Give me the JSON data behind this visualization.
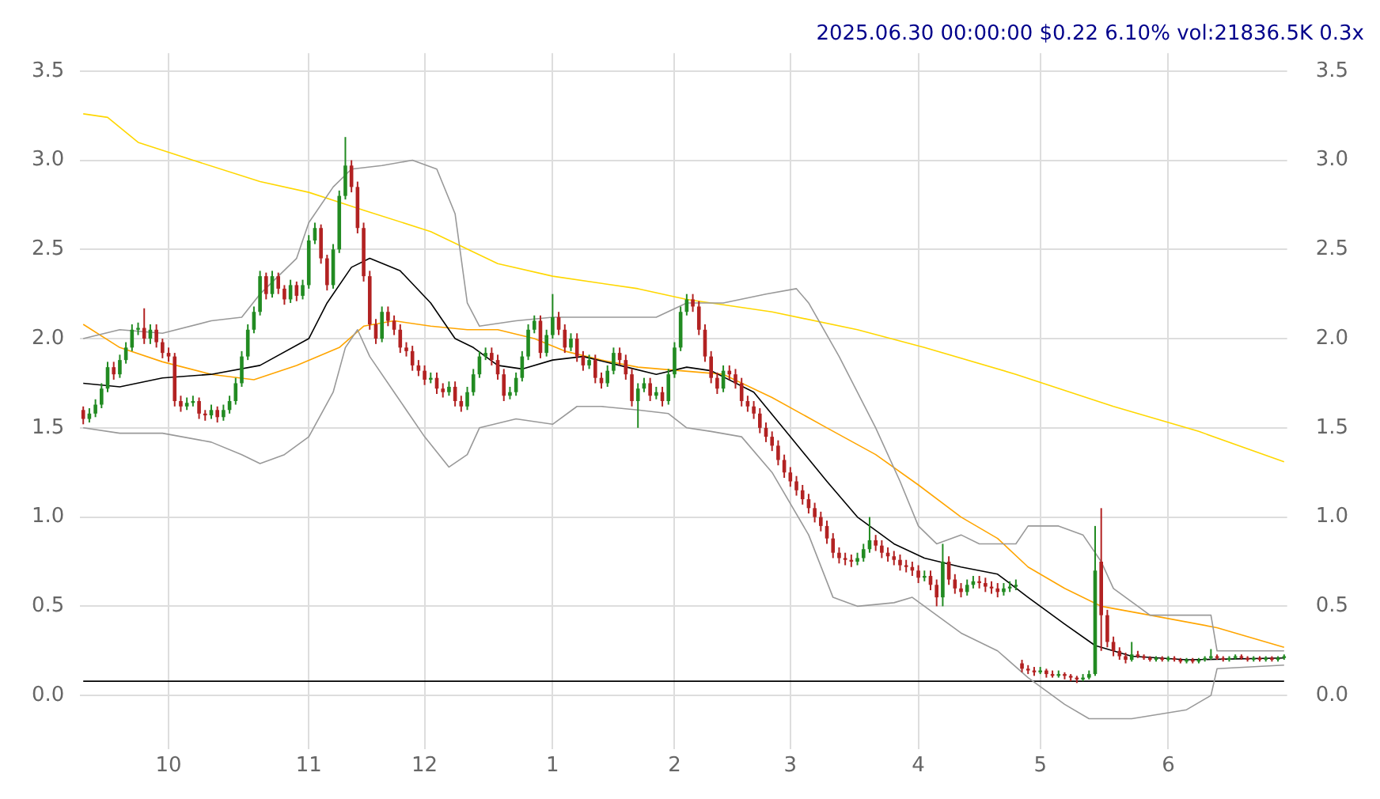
{
  "chart_data": {
    "type": "candlestick",
    "title": "2025.06.30 00:00:00 $0.22 6.10% vol:21836.5K 0.3x",
    "categories": [
      null,
      null,
      null,
      null,
      null,
      null,
      null,
      null,
      null,
      null,
      null,
      null,
      null,
      null,
      "10",
      null,
      null,
      null,
      null,
      null,
      null,
      null,
      null,
      null,
      null,
      null,
      null,
      null,
      null,
      null,
      null,
      null,
      null,
      null,
      null,
      null,
      null,
      "11",
      null,
      null,
      null,
      null,
      null,
      null,
      null,
      null,
      null,
      null,
      null,
      null,
      null,
      null,
      null,
      null,
      null,
      null,
      "12",
      null,
      null,
      null,
      null,
      null,
      null,
      null,
      null,
      null,
      null,
      null,
      null,
      null,
      null,
      null,
      null,
      null,
      null,
      null,
      null,
      "1",
      null,
      null,
      null,
      null,
      null,
      null,
      null,
      null,
      null,
      null,
      null,
      null,
      null,
      null,
      null,
      null,
      null,
      null,
      null,
      "2",
      null,
      null,
      null,
      null,
      null,
      null,
      null,
      null,
      null,
      null,
      null,
      null,
      null,
      null,
      null,
      null,
      null,
      null,
      "3",
      null,
      null,
      null,
      null,
      null,
      null,
      null,
      null,
      null,
      null,
      null,
      null,
      null,
      null,
      null,
      null,
      null,
      null,
      null,
      null,
      "4",
      null,
      null,
      null,
      null,
      null,
      null,
      null,
      null,
      null,
      null,
      null,
      null,
      null,
      null,
      null,
      null,
      null,
      null,
      null,
      "5",
      null,
      null,
      null,
      null,
      null,
      null,
      null,
      null,
      null,
      null,
      null,
      null,
      null,
      null,
      null,
      null,
      null,
      null,
      null,
      null,
      "6",
      null,
      null,
      null,
      null,
      null,
      null,
      null,
      null,
      null,
      null,
      null,
      null,
      null,
      null,
      null,
      null,
      null,
      null,
      null
    ],
    "ohlc": [
      [
        1.6,
        1.62,
        1.52,
        1.55
      ],
      [
        1.55,
        1.61,
        1.53,
        1.58
      ],
      [
        1.58,
        1.66,
        1.56,
        1.63
      ],
      [
        1.63,
        1.75,
        1.61,
        1.72
      ],
      [
        1.72,
        1.87,
        1.7,
        1.84
      ],
      [
        1.84,
        1.87,
        1.77,
        1.8
      ],
      [
        1.8,
        1.91,
        1.78,
        1.88
      ],
      [
        1.88,
        1.98,
        1.86,
        1.95
      ],
      [
        1.95,
        2.08,
        1.93,
        2.05
      ],
      [
        2.05,
        2.09,
        2.02,
        2.06
      ],
      [
        2.06,
        2.17,
        1.97,
        2.0
      ],
      [
        2.0,
        2.08,
        1.97,
        2.05
      ],
      [
        2.05,
        2.08,
        1.95,
        1.98
      ],
      [
        1.98,
        2.0,
        1.89,
        1.92
      ],
      [
        1.92,
        1.95,
        1.87,
        1.9
      ],
      [
        1.9,
        1.92,
        1.62,
        1.65
      ],
      [
        1.65,
        1.68,
        1.59,
        1.62
      ],
      [
        1.62,
        1.67,
        1.6,
        1.64
      ],
      [
        1.64,
        1.68,
        1.62,
        1.65
      ],
      [
        1.65,
        1.67,
        1.55,
        1.58
      ],
      [
        1.58,
        1.6,
        1.54,
        1.57
      ],
      [
        1.57,
        1.63,
        1.55,
        1.6
      ],
      [
        1.6,
        1.62,
        1.53,
        1.56
      ],
      [
        1.56,
        1.63,
        1.54,
        1.6
      ],
      [
        1.6,
        1.68,
        1.58,
        1.65
      ],
      [
        1.65,
        1.78,
        1.63,
        1.75
      ],
      [
        1.75,
        1.93,
        1.73,
        1.9
      ],
      [
        1.9,
        2.08,
        1.88,
        2.05
      ],
      [
        2.05,
        2.18,
        2.03,
        2.15
      ],
      [
        2.15,
        2.38,
        2.13,
        2.35
      ],
      [
        2.35,
        2.37,
        2.22,
        2.25
      ],
      [
        2.25,
        2.38,
        2.23,
        2.35
      ],
      [
        2.35,
        2.37,
        2.25,
        2.28
      ],
      [
        2.28,
        2.3,
        2.19,
        2.22
      ],
      [
        2.22,
        2.33,
        2.2,
        2.3
      ],
      [
        2.3,
        2.32,
        2.21,
        2.24
      ],
      [
        2.24,
        2.33,
        2.22,
        2.3
      ],
      [
        2.3,
        2.58,
        2.28,
        2.55
      ],
      [
        2.55,
        2.65,
        2.53,
        2.62
      ],
      [
        2.62,
        2.64,
        2.42,
        2.45
      ],
      [
        2.45,
        2.47,
        2.27,
        2.3
      ],
      [
        2.3,
        2.53,
        2.28,
        2.5
      ],
      [
        2.5,
        2.83,
        2.48,
        2.8
      ],
      [
        2.8,
        3.13,
        2.78,
        2.97
      ],
      [
        2.97,
        3.0,
        2.82,
        2.85
      ],
      [
        2.85,
        2.88,
        2.59,
        2.62
      ],
      [
        2.62,
        2.65,
        2.32,
        2.35
      ],
      [
        2.35,
        2.38,
        2.05,
        2.08
      ],
      [
        2.08,
        2.11,
        1.97,
        2.0
      ],
      [
        2.0,
        2.18,
        1.98,
        2.15
      ],
      [
        2.15,
        2.18,
        2.07,
        2.1
      ],
      [
        2.1,
        2.13,
        2.02,
        2.05
      ],
      [
        2.05,
        2.08,
        1.92,
        1.95
      ],
      [
        1.95,
        1.98,
        1.9,
        1.93
      ],
      [
        1.93,
        1.96,
        1.82,
        1.85
      ],
      [
        1.85,
        1.88,
        1.79,
        1.82
      ],
      [
        1.82,
        1.85,
        1.74,
        1.77
      ],
      [
        1.77,
        1.81,
        1.75,
        1.78
      ],
      [
        1.78,
        1.81,
        1.69,
        1.72
      ],
      [
        1.72,
        1.75,
        1.67,
        1.7
      ],
      [
        1.7,
        1.76,
        1.68,
        1.73
      ],
      [
        1.73,
        1.76,
        1.62,
        1.65
      ],
      [
        1.65,
        1.68,
        1.59,
        1.62
      ],
      [
        1.62,
        1.73,
        1.6,
        1.7
      ],
      [
        1.7,
        1.83,
        1.68,
        1.8
      ],
      [
        1.8,
        1.93,
        1.78,
        1.9
      ],
      [
        1.9,
        1.95,
        1.88,
        1.92
      ],
      [
        1.92,
        1.95,
        1.85,
        1.88
      ],
      [
        1.88,
        1.91,
        1.77,
        1.8
      ],
      [
        1.8,
        1.83,
        1.65,
        1.68
      ],
      [
        1.68,
        1.73,
        1.66,
        1.7
      ],
      [
        1.7,
        1.81,
        1.68,
        1.78
      ],
      [
        1.78,
        1.93,
        1.76,
        1.9
      ],
      [
        1.9,
        2.08,
        1.88,
        2.05
      ],
      [
        2.05,
        2.13,
        2.03,
        2.1
      ],
      [
        2.1,
        2.13,
        1.89,
        1.92
      ],
      [
        1.92,
        2.05,
        1.9,
        2.02
      ],
      [
        2.02,
        2.25,
        2.0,
        2.12
      ],
      [
        2.12,
        2.15,
        2.02,
        2.05
      ],
      [
        2.05,
        2.08,
        1.92,
        1.95
      ],
      [
        1.95,
        2.03,
        1.93,
        2.0
      ],
      [
        2.0,
        2.03,
        1.87,
        1.9
      ],
      [
        1.9,
        1.93,
        1.82,
        1.85
      ],
      [
        1.85,
        1.91,
        1.83,
        1.88
      ],
      [
        1.88,
        1.91,
        1.75,
        1.78
      ],
      [
        1.78,
        1.81,
        1.72,
        1.75
      ],
      [
        1.75,
        1.85,
        1.73,
        1.82
      ],
      [
        1.82,
        1.95,
        1.8,
        1.92
      ],
      [
        1.92,
        1.95,
        1.85,
        1.88
      ],
      [
        1.88,
        1.91,
        1.77,
        1.8
      ],
      [
        1.8,
        1.83,
        1.62,
        1.65
      ],
      [
        1.65,
        1.75,
        1.5,
        1.72
      ],
      [
        1.72,
        1.78,
        1.7,
        1.75
      ],
      [
        1.75,
        1.78,
        1.65,
        1.68
      ],
      [
        1.68,
        1.73,
        1.66,
        1.7
      ],
      [
        1.7,
        1.73,
        1.62,
        1.65
      ],
      [
        1.65,
        1.83,
        1.63,
        1.8
      ],
      [
        1.8,
        1.98,
        1.78,
        1.95
      ],
      [
        1.95,
        2.18,
        1.93,
        2.15
      ],
      [
        2.15,
        2.25,
        2.13,
        2.22
      ],
      [
        2.22,
        2.25,
        2.15,
        2.18
      ],
      [
        2.18,
        2.21,
        2.02,
        2.05
      ],
      [
        2.05,
        2.08,
        1.87,
        1.9
      ],
      [
        1.9,
        1.93,
        1.75,
        1.78
      ],
      [
        1.78,
        1.81,
        1.69,
        1.72
      ],
      [
        1.72,
        1.85,
        1.7,
        1.82
      ],
      [
        1.82,
        1.85,
        1.77,
        1.8
      ],
      [
        1.8,
        1.83,
        1.72,
        1.75
      ],
      [
        1.75,
        1.78,
        1.62,
        1.65
      ],
      [
        1.65,
        1.68,
        1.59,
        1.62
      ],
      [
        1.62,
        1.65,
        1.55,
        1.58
      ],
      [
        1.58,
        1.61,
        1.47,
        1.5
      ],
      [
        1.5,
        1.53,
        1.42,
        1.45
      ],
      [
        1.45,
        1.48,
        1.37,
        1.4
      ],
      [
        1.4,
        1.43,
        1.29,
        1.32
      ],
      [
        1.32,
        1.35,
        1.22,
        1.25
      ],
      [
        1.25,
        1.28,
        1.17,
        1.2
      ],
      [
        1.2,
        1.23,
        1.12,
        1.15
      ],
      [
        1.15,
        1.18,
        1.07,
        1.1
      ],
      [
        1.1,
        1.13,
        1.02,
        1.05
      ],
      [
        1.05,
        1.08,
        0.97,
        1.0
      ],
      [
        1.0,
        1.03,
        0.92,
        0.95
      ],
      [
        0.95,
        0.98,
        0.85,
        0.88
      ],
      [
        0.88,
        0.91,
        0.77,
        0.8
      ],
      [
        0.8,
        0.83,
        0.74,
        0.77
      ],
      [
        0.77,
        0.8,
        0.73,
        0.76
      ],
      [
        0.76,
        0.79,
        0.72,
        0.75
      ],
      [
        0.75,
        0.8,
        0.73,
        0.77
      ],
      [
        0.77,
        0.85,
        0.75,
        0.82
      ],
      [
        0.82,
        1.0,
        0.8,
        0.87
      ],
      [
        0.87,
        0.9,
        0.81,
        0.84
      ],
      [
        0.84,
        0.87,
        0.77,
        0.8
      ],
      [
        0.8,
        0.83,
        0.75,
        0.78
      ],
      [
        0.78,
        0.81,
        0.73,
        0.76
      ],
      [
        0.76,
        0.79,
        0.7,
        0.73
      ],
      [
        0.73,
        0.76,
        0.69,
        0.72
      ],
      [
        0.72,
        0.75,
        0.67,
        0.7
      ],
      [
        0.7,
        0.73,
        0.63,
        0.66
      ],
      [
        0.66,
        0.7,
        0.64,
        0.67
      ],
      [
        0.67,
        0.7,
        0.59,
        0.62
      ],
      [
        0.62,
        0.65,
        0.5,
        0.55
      ],
      [
        0.55,
        0.85,
        0.5,
        0.75
      ],
      [
        0.75,
        0.78,
        0.62,
        0.65
      ],
      [
        0.65,
        0.68,
        0.57,
        0.6
      ],
      [
        0.6,
        0.63,
        0.55,
        0.58
      ],
      [
        0.58,
        0.65,
        0.56,
        0.62
      ],
      [
        0.62,
        0.67,
        0.6,
        0.64
      ],
      [
        0.64,
        0.67,
        0.6,
        0.63
      ],
      [
        0.63,
        0.66,
        0.58,
        0.61
      ],
      [
        0.61,
        0.64,
        0.57,
        0.6
      ],
      [
        0.6,
        0.63,
        0.55,
        0.58
      ],
      [
        0.58,
        0.63,
        0.56,
        0.6
      ],
      [
        0.6,
        0.64,
        0.58,
        0.61
      ],
      [
        0.61,
        0.65,
        0.59,
        0.62
      ],
      [
        0.18,
        0.2,
        0.13,
        0.15
      ],
      [
        0.15,
        0.17,
        0.12,
        0.14
      ],
      [
        0.14,
        0.16,
        0.11,
        0.13
      ],
      [
        0.13,
        0.16,
        0.12,
        0.14
      ],
      [
        0.14,
        0.15,
        0.1,
        0.12
      ],
      [
        0.12,
        0.14,
        0.1,
        0.11
      ],
      [
        0.11,
        0.14,
        0.1,
        0.12
      ],
      [
        0.12,
        0.13,
        0.09,
        0.11
      ],
      [
        0.11,
        0.12,
        0.08,
        0.1
      ],
      [
        0.1,
        0.11,
        0.07,
        0.09
      ],
      [
        0.09,
        0.12,
        0.08,
        0.1
      ],
      [
        0.1,
        0.14,
        0.09,
        0.12
      ],
      [
        0.12,
        0.95,
        0.11,
        0.7
      ],
      [
        0.75,
        1.05,
        0.25,
        0.45
      ],
      [
        0.45,
        0.48,
        0.27,
        0.3
      ],
      [
        0.3,
        0.33,
        0.22,
        0.25
      ],
      [
        0.25,
        0.27,
        0.2,
        0.22
      ],
      [
        0.22,
        0.24,
        0.18,
        0.2
      ],
      [
        0.2,
        0.3,
        0.19,
        0.23
      ],
      [
        0.23,
        0.25,
        0.21,
        0.22
      ],
      [
        0.22,
        0.23,
        0.2,
        0.21
      ],
      [
        0.21,
        0.22,
        0.19,
        0.2
      ],
      [
        0.2,
        0.22,
        0.19,
        0.21
      ],
      [
        0.21,
        0.22,
        0.19,
        0.2
      ],
      [
        0.2,
        0.22,
        0.19,
        0.21
      ],
      [
        0.21,
        0.22,
        0.19,
        0.2
      ],
      [
        0.2,
        0.21,
        0.18,
        0.19
      ],
      [
        0.19,
        0.21,
        0.18,
        0.2
      ],
      [
        0.2,
        0.21,
        0.18,
        0.19
      ],
      [
        0.19,
        0.21,
        0.18,
        0.2
      ],
      [
        0.2,
        0.22,
        0.19,
        0.21
      ],
      [
        0.21,
        0.26,
        0.2,
        0.22
      ],
      [
        0.22,
        0.23,
        0.2,
        0.21
      ],
      [
        0.21,
        0.22,
        0.19,
        0.2
      ],
      [
        0.2,
        0.22,
        0.19,
        0.21
      ],
      [
        0.21,
        0.23,
        0.2,
        0.22
      ],
      [
        0.22,
        0.23,
        0.2,
        0.21
      ],
      [
        0.21,
        0.22,
        0.19,
        0.2
      ],
      [
        0.2,
        0.22,
        0.19,
        0.21
      ],
      [
        0.21,
        0.22,
        0.19,
        0.2
      ],
      [
        0.2,
        0.22,
        0.19,
        0.21
      ],
      [
        0.21,
        0.22,
        0.19,
        0.2
      ],
      [
        0.2,
        0.22,
        0.19,
        0.21
      ],
      [
        0.21,
        0.23,
        0.2,
        0.22
      ]
    ],
    "series": [
      {
        "type": "line",
        "color": "#000000",
        "values": [
          1.75,
          null,
          null,
          null,
          null,
          null,
          1.73,
          null,
          null,
          null,
          null,
          null,
          null,
          1.78,
          null,
          null,
          null,
          null,
          null,
          null,
          null,
          1.8,
          null,
          null,
          null,
          null,
          null,
          null,
          null,
          1.85,
          null,
          null,
          null,
          null,
          null,
          null,
          null,
          2.0,
          null,
          null,
          2.2,
          null,
          null,
          null,
          2.4,
          null,
          null,
          2.45,
          null,
          null,
          null,
          null,
          2.38,
          null,
          null,
          null,
          null,
          2.2,
          null,
          null,
          null,
          2.0,
          null,
          null,
          1.95,
          null,
          null,
          null,
          1.85,
          null,
          null,
          null,
          1.83,
          null,
          null,
          null,
          null,
          1.88,
          null,
          null,
          null,
          null,
          1.9,
          null,
          null,
          null,
          null,
          null,
          1.85,
          null,
          null,
          null,
          null,
          null,
          1.8,
          null,
          null,
          null,
          null,
          1.84,
          null,
          null,
          null,
          1.82,
          null,
          null,
          null,
          null,
          null,
          null,
          1.7,
          null,
          null,
          null,
          null,
          null,
          1.45,
          null,
          null,
          null,
          null,
          null,
          1.2,
          null,
          null,
          null,
          null,
          1.0,
          null,
          null,
          null,
          null,
          null,
          0.85,
          null,
          null,
          null,
          null,
          0.77,
          null,
          null,
          null,
          null,
          null,
          0.72,
          null,
          null,
          null,
          null,
          null,
          0.68,
          null,
          null,
          null,
          null,
          0.55,
          null,
          null,
          null,
          null,
          null,
          0.4,
          null,
          null,
          null,
          null,
          0.28,
          null,
          null,
          null,
          null,
          null,
          0.22,
          null,
          null,
          null,
          null,
          null,
          null,
          null,
          null,
          0.2,
          null,
          null,
          null,
          null,
          null,
          null,
          null,
          null,
          null,
          null,
          null,
          null,
          null,
          null,
          null,
          0.21
        ]
      },
      {
        "type": "line",
        "color": "#999999",
        "values": [
          2.0,
          null,
          null,
          null,
          null,
          null,
          2.05,
          null,
          null,
          null,
          null,
          null,
          null,
          2.03,
          null,
          null,
          null,
          null,
          null,
          null,
          null,
          2.1,
          null,
          null,
          null,
          null,
          2.12,
          null,
          null,
          2.25,
          null,
          null,
          null,
          null,
          null,
          2.45,
          null,
          2.65,
          null,
          null,
          null,
          2.85,
          null,
          null,
          2.95,
          null,
          null,
          null,
          null,
          2.97,
          null,
          null,
          null,
          null,
          3.0,
          null,
          null,
          null,
          2.95,
          null,
          null,
          2.7,
          null,
          2.2,
          null,
          2.07,
          null,
          null,
          null,
          null,
          null,
          2.1,
          null,
          null,
          null,
          null,
          null,
          2.12,
          null,
          null,
          null,
          null,
          null,
          null,
          null,
          2.12,
          null,
          null,
          null,
          null,
          null,
          null,
          null,
          null,
          2.12,
          null,
          null,
          null,
          null,
          2.2,
          null,
          null,
          null,
          null,
          null,
          2.2,
          null,
          null,
          null,
          null,
          null,
          null,
          2.25,
          null,
          null,
          null,
          null,
          2.28,
          null,
          2.2,
          null,
          null,
          null,
          null,
          1.9,
          null,
          null,
          null,
          null,
          null,
          1.5,
          null,
          null,
          null,
          1.2,
          null,
          null,
          0.95,
          null,
          null,
          0.85,
          null,
          null,
          null,
          0.9,
          null,
          null,
          0.85,
          null,
          null,
          null,
          null,
          null,
          0.85,
          null,
          0.95,
          null,
          null,
          null,
          null,
          0.95,
          null,
          null,
          null,
          0.9,
          null,
          null,
          0.75,
          null,
          0.6,
          null,
          null,
          null,
          null,
          null,
          0.45,
          null,
          null,
          null,
          null,
          null,
          0.45,
          null,
          null,
          null,
          0.45,
          0.25,
          null,
          null,
          null,
          null,
          null,
          null,
          null,
          null,
          null,
          null,
          0.25
        ]
      },
      {
        "type": "line",
        "color": "#999999",
        "values": [
          1.5,
          null,
          null,
          null,
          null,
          null,
          1.47,
          null,
          null,
          null,
          null,
          null,
          null,
          1.47,
          null,
          null,
          null,
          null,
          null,
          null,
          null,
          1.42,
          null,
          null,
          null,
          null,
          1.35,
          null,
          null,
          1.3,
          null,
          null,
          null,
          1.35,
          null,
          null,
          null,
          1.45,
          null,
          null,
          null,
          1.7,
          null,
          1.95,
          null,
          2.05,
          null,
          1.9,
          null,
          null,
          null,
          1.7,
          null,
          null,
          null,
          null,
          1.45,
          null,
          null,
          null,
          1.28,
          null,
          null,
          1.35,
          null,
          1.5,
          null,
          null,
          null,
          null,
          null,
          1.55,
          null,
          null,
          null,
          null,
          null,
          1.52,
          null,
          null,
          null,
          1.62,
          null,
          null,
          null,
          1.62,
          null,
          null,
          null,
          null,
          null,
          1.6,
          null,
          null,
          null,
          null,
          1.58,
          null,
          null,
          1.5,
          null,
          null,
          null,
          1.48,
          null,
          null,
          null,
          null,
          1.45,
          null,
          null,
          null,
          null,
          1.25,
          null,
          null,
          null,
          null,
          null,
          0.9,
          null,
          null,
          null,
          0.55,
          null,
          null,
          null,
          0.5,
          null,
          null,
          null,
          null,
          null,
          0.52,
          null,
          null,
          0.55,
          null,
          null,
          null,
          0.45,
          null,
          null,
          null,
          0.35,
          null,
          null,
          null,
          null,
          null,
          0.25,
          null,
          null,
          null,
          null,
          0.1,
          null,
          null,
          null,
          null,
          null,
          -0.05,
          null,
          null,
          null,
          -0.13,
          null,
          null,
          null,
          null,
          null,
          null,
          -0.13,
          null,
          null,
          null,
          null,
          null,
          null,
          null,
          null,
          -0.08,
          null,
          null,
          null,
          0.0,
          0.15,
          null,
          null,
          null,
          null,
          null,
          null,
          null,
          null,
          null,
          null,
          0.17
        ]
      },
      {
        "type": "line",
        "color": "#ffa500",
        "values": [
          2.08,
          null,
          null,
          null,
          null,
          null,
          1.95,
          null,
          null,
          null,
          null,
          null,
          null,
          1.87,
          null,
          null,
          null,
          null,
          null,
          null,
          null,
          1.8,
          null,
          null,
          null,
          null,
          null,
          null,
          1.77,
          null,
          null,
          null,
          null,
          null,
          null,
          1.85,
          null,
          null,
          null,
          null,
          null,
          null,
          1.95,
          null,
          null,
          null,
          2.07,
          null,
          null,
          null,
          null,
          2.1,
          null,
          null,
          null,
          null,
          null,
          2.07,
          null,
          null,
          null,
          null,
          null,
          2.05,
          null,
          null,
          null,
          null,
          2.05,
          null,
          null,
          null,
          null,
          null,
          2.0,
          null,
          null,
          null,
          null,
          1.93,
          null,
          null,
          null,
          null,
          null,
          1.88,
          null,
          null,
          null,
          null,
          null,
          1.84,
          null,
          null,
          null,
          null,
          null,
          null,
          1.82,
          null,
          null,
          null,
          null,
          null,
          null,
          1.8,
          null,
          null,
          null,
          null,
          null,
          null,
          null,
          1.67,
          null,
          null,
          null,
          null,
          null,
          null,
          null,
          null,
          1.5,
          null,
          null,
          null,
          null,
          null,
          null,
          null,
          1.35,
          null,
          null,
          null,
          null,
          null,
          null,
          1.18,
          null,
          null,
          null,
          null,
          null,
          null,
          1.0,
          null,
          null,
          null,
          null,
          null,
          0.88,
          null,
          null,
          null,
          null,
          0.72,
          null,
          null,
          null,
          null,
          null,
          0.6,
          null,
          null,
          null,
          null,
          null,
          0.5,
          null,
          null,
          null,
          null,
          null,
          null,
          null,
          0.45,
          null,
          null,
          null,
          null,
          null,
          null,
          null,
          null,
          null,
          null,
          0.38,
          null,
          null,
          null,
          null,
          null,
          null,
          null,
          null,
          null,
          null,
          0.27
        ]
      },
      {
        "type": "line",
        "color": "#ffd700",
        "values": [
          3.26,
          null,
          null,
          null,
          3.24,
          null,
          null,
          null,
          null,
          3.1,
          null,
          null,
          null,
          null,
          null,
          null,
          null,
          null,
          3.0,
          null,
          null,
          null,
          null,
          null,
          null,
          null,
          null,
          null,
          null,
          2.88,
          null,
          null,
          null,
          null,
          null,
          null,
          null,
          2.82,
          null,
          null,
          null,
          null,
          null,
          null,
          null,
          null,
          2.72,
          null,
          null,
          null,
          null,
          null,
          null,
          null,
          null,
          null,
          null,
          2.6,
          null,
          null,
          null,
          null,
          null,
          null,
          null,
          null,
          null,
          null,
          2.42,
          null,
          null,
          null,
          null,
          null,
          null,
          null,
          null,
          2.35,
          null,
          null,
          null,
          null,
          null,
          null,
          null,
          null,
          null,
          null,
          null,
          null,
          null,
          2.28,
          null,
          null,
          null,
          null,
          null,
          null,
          null,
          2.22,
          null,
          null,
          null,
          null,
          null,
          null,
          null,
          null,
          null,
          null,
          null,
          null,
          null,
          2.15,
          null,
          null,
          null,
          null,
          null,
          null,
          null,
          null,
          null,
          null,
          null,
          null,
          null,
          2.05,
          null,
          null,
          null,
          null,
          null,
          null,
          null,
          null,
          null,
          null,
          1.95,
          null,
          null,
          null,
          null,
          null,
          null,
          null,
          null,
          null,
          null,
          null,
          null,
          null,
          null,
          1.8,
          null,
          null,
          null,
          null,
          null,
          null,
          null,
          null,
          null,
          null,
          null,
          null,
          null,
          null,
          null,
          1.62,
          null,
          null,
          null,
          null,
          null,
          null,
          null,
          null,
          null,
          null,
          null,
          null,
          null,
          1.48,
          null,
          null,
          null,
          null,
          null,
          null,
          null,
          null,
          null,
          null,
          null,
          null,
          null,
          1.31
        ]
      },
      {
        "type": "line",
        "color": "#000000",
        "values": [
          0.08,
          null,
          null,
          null,
          null,
          null,
          null,
          null,
          null,
          null,
          null,
          null,
          null,
          null,
          null,
          null,
          null,
          null,
          null,
          null,
          null,
          null,
          null,
          null,
          null,
          null,
          null,
          null,
          null,
          null,
          null,
          null,
          null,
          null,
          null,
          null,
          null,
          null,
          null,
          null,
          null,
          null,
          null,
          null,
          null,
          null,
          null,
          null,
          null,
          null,
          null,
          null,
          null,
          null,
          null,
          null,
          null,
          null,
          null,
          null,
          null,
          null,
          null,
          null,
          null,
          null,
          null,
          null,
          null,
          null,
          null,
          null,
          null,
          null,
          null,
          null,
          null,
          null,
          null,
          null,
          null,
          null,
          null,
          null,
          null,
          null,
          null,
          null,
          null,
          null,
          null,
          null,
          null,
          null,
          null,
          null,
          null,
          null,
          null,
          null,
          null,
          null,
          null,
          null,
          null,
          null,
          null,
          null,
          null,
          null,
          null,
          null,
          null,
          null,
          null,
          null,
          null,
          null,
          null,
          null,
          null,
          null,
          null,
          null,
          null,
          null,
          null,
          null,
          null,
          null,
          null,
          null,
          null,
          null,
          null,
          null,
          null,
          null,
          null,
          null,
          null,
          null,
          null,
          null,
          null,
          null,
          null,
          null,
          null,
          null,
          null,
          null,
          null,
          null,
          null,
          null,
          null,
          null,
          null,
          null,
          null,
          null,
          null,
          null,
          null,
          null,
          null,
          null,
          null,
          null,
          null,
          null,
          null,
          null,
          null,
          null,
          null,
          null,
          null,
          null,
          null,
          null,
          null,
          null,
          null,
          null,
          null,
          null,
          null,
          null,
          null,
          null,
          null,
          null,
          null,
          null,
          null,
          0.08
        ]
      }
    ],
    "ylim": [
      -0.3,
      3.6
    ],
    "yticks": [
      {
        "value": 0,
        "label": "0.0"
      },
      {
        "value": 0.5,
        "label": "0.5"
      },
      {
        "value": 1,
        "label": "1.0"
      },
      {
        "value": 1.5,
        "label": "1.5"
      },
      {
        "value": 2,
        "label": "2.0"
      },
      {
        "value": 2.5,
        "label": "2.5"
      },
      {
        "value": 3,
        "label": "3.0"
      },
      {
        "value": 3.5,
        "label": "3.5"
      }
    ],
    "y2lim": [
      -0.3,
      3.6
    ],
    "y2ticks": [
      {
        "value": 0,
        "label": "0.0"
      },
      {
        "value": 0.5,
        "label": "0.5"
      },
      {
        "value": 1,
        "label": "1.0"
      },
      {
        "value": 1.5,
        "label": "1.5"
      },
      {
        "value": 2,
        "label": "2.0"
      },
      {
        "value": 2.5,
        "label": "2.5"
      },
      {
        "value": 3,
        "label": "3.0"
      },
      {
        "value": 3.5,
        "label": "3.5"
      }
    ],
    "grid": true,
    "legend": false,
    "marker": "none"
  }
}
